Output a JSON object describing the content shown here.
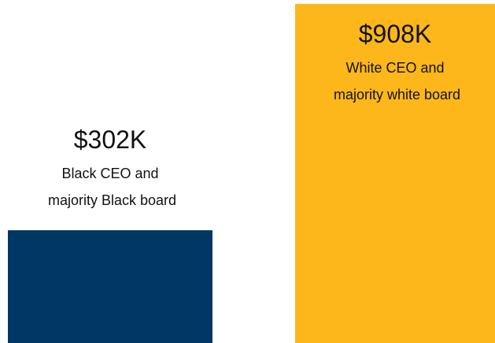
{
  "chart_data": {
    "type": "bar",
    "categories": [
      "Black CEO and majority Black board",
      "White CEO and majority white board"
    ],
    "values": [
      302000,
      908000
    ],
    "value_labels": [
      "$302K",
      "$908K"
    ],
    "colors": [
      "#003764",
      "#fdb71a"
    ]
  }
}
